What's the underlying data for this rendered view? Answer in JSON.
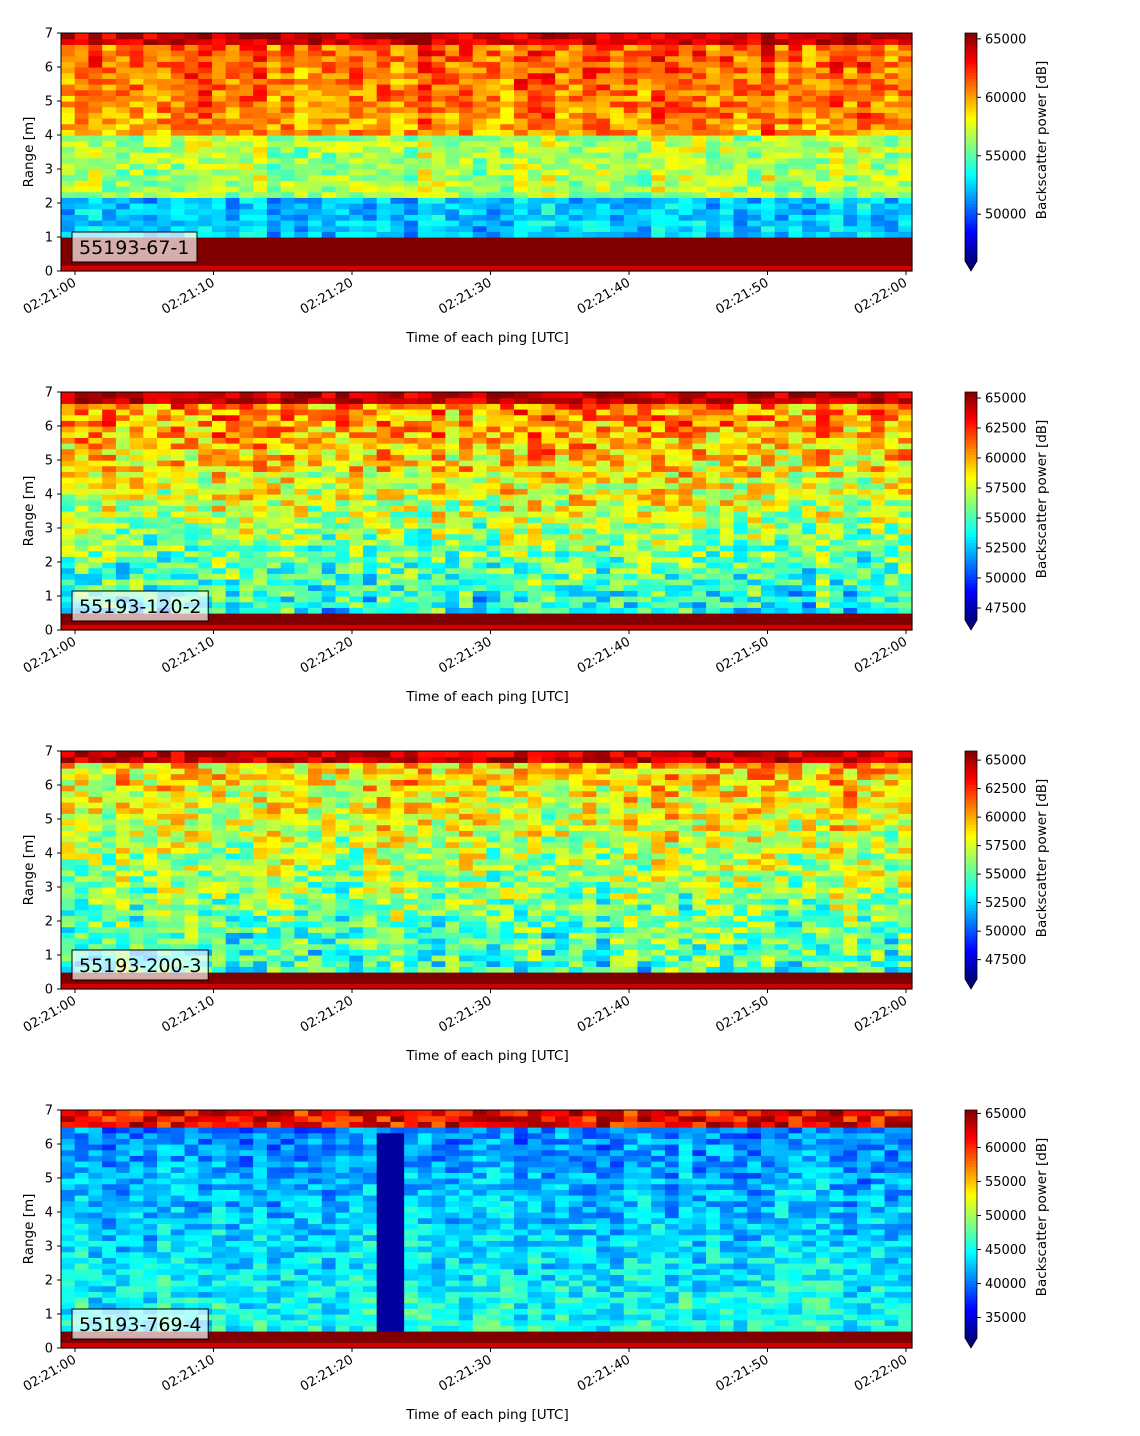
{
  "chart_data": [
    {
      "type": "heatmap",
      "label": "55193-67-1",
      "xlabel": "Time of each ping [UTC]",
      "ylabel": "Range [m]",
      "colorbar_label": "Backscatter power [dB]",
      "colormap": "jet",
      "colorbar_extend": "min",
      "x_ticks": [
        "02:21:00",
        "02:21:10",
        "02:21:20",
        "02:21:30",
        "02:21:40",
        "02:21:50",
        "02:22:00"
      ],
      "y_ticks": [
        0,
        1,
        2,
        3,
        4,
        5,
        6,
        7
      ],
      "ylim": [
        0,
        7
      ],
      "clim": [
        46000,
        65500
      ],
      "colorbar_ticks": [
        50000,
        55000,
        60000,
        65000
      ],
      "colorbar_tick_labels": [
        "50000",
        "55000",
        "60000",
        "65000"
      ]
    },
    {
      "type": "heatmap",
      "label": "55193-120-2",
      "xlabel": "Time of each ping [UTC]",
      "ylabel": "Range [m]",
      "colorbar_label": "Backscatter power [dB]",
      "colormap": "jet",
      "colorbar_extend": "min",
      "x_ticks": [
        "02:21:00",
        "02:21:10",
        "02:21:20",
        "02:21:30",
        "02:21:40",
        "02:21:50",
        "02:22:00"
      ],
      "y_ticks": [
        0,
        1,
        2,
        3,
        4,
        5,
        6,
        7
      ],
      "ylim": [
        0,
        7
      ],
      "clim": [
        46500,
        65500
      ],
      "colorbar_ticks": [
        47500,
        50000,
        52500,
        55000,
        57500,
        60000,
        62500,
        65000
      ],
      "colorbar_tick_labels": [
        "47500",
        "50000",
        "52500",
        "55000",
        "57500",
        "60000",
        "62500",
        "65000"
      ]
    },
    {
      "type": "heatmap",
      "label": "55193-200-3",
      "xlabel": "Time of each ping [UTC]",
      "ylabel": "Range [m]",
      "colorbar_label": "Backscatter power [dB]",
      "colormap": "jet",
      "colorbar_extend": "min",
      "x_ticks": [
        "02:21:00",
        "02:21:10",
        "02:21:20",
        "02:21:30",
        "02:21:40",
        "02:21:50",
        "02:22:00"
      ],
      "y_ticks": [
        0,
        1,
        2,
        3,
        4,
        5,
        6,
        7
      ],
      "ylim": [
        0,
        7
      ],
      "clim": [
        45800,
        65800
      ],
      "colorbar_ticks": [
        47500,
        50000,
        52500,
        55000,
        57500,
        60000,
        62500,
        65000
      ],
      "colorbar_tick_labels": [
        "47500",
        "50000",
        "52500",
        "55000",
        "57500",
        "60000",
        "62500",
        "65000"
      ]
    },
    {
      "type": "heatmap",
      "label": "55193-769-4",
      "xlabel": "Time of each ping [UTC]",
      "ylabel": "Range [m]",
      "colorbar_label": "Backscatter power [dB]",
      "colormap": "jet",
      "colorbar_extend": "min",
      "x_ticks": [
        "02:21:00",
        "02:21:10",
        "02:21:20",
        "02:21:30",
        "02:21:40",
        "02:21:50",
        "02:22:00"
      ],
      "y_ticks": [
        0,
        1,
        2,
        3,
        4,
        5,
        6,
        7
      ],
      "ylim": [
        0,
        7
      ],
      "clim": [
        32000,
        65500
      ],
      "colorbar_ticks": [
        35000,
        40000,
        45000,
        50000,
        55000,
        60000,
        65000
      ],
      "colorbar_tick_labels": [
        "35000",
        "40000",
        "45000",
        "50000",
        "55000",
        "60000",
        "65000"
      ]
    }
  ]
}
